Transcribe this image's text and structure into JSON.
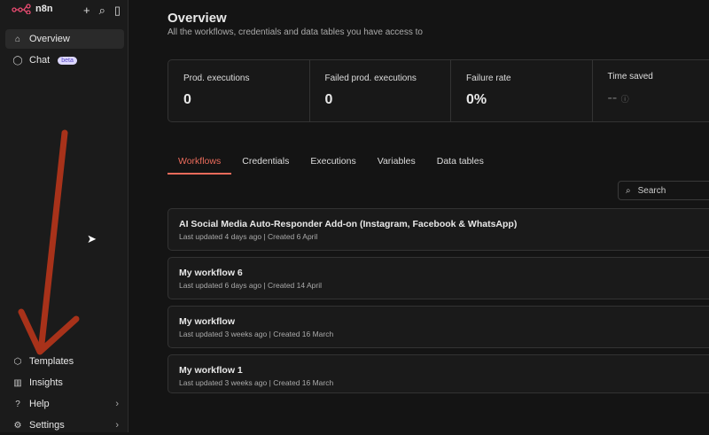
{
  "app": {
    "name": "n8n"
  },
  "sidebar": {
    "top": [
      {
        "label": "Overview",
        "icon": "home-icon"
      },
      {
        "label": "Chat",
        "icon": "chat-icon",
        "badge": "beta"
      }
    ],
    "bottom": [
      {
        "label": "Templates",
        "icon": "templates-icon"
      },
      {
        "label": "Insights",
        "icon": "chart-icon"
      },
      {
        "label": "Help",
        "icon": "help-icon"
      },
      {
        "label": "Settings",
        "icon": "gear-icon"
      }
    ]
  },
  "header": {
    "title": "Overview",
    "subtitle": "All the workflows, credentials and data tables you have access to"
  },
  "stats": [
    {
      "label": "Prod. executions",
      "value": "0"
    },
    {
      "label": "Failed prod. executions",
      "value": "0"
    },
    {
      "label": "Failure rate",
      "value": "0%"
    },
    {
      "label": "Time saved",
      "value": "--"
    }
  ],
  "tabs": [
    "Workflows",
    "Credentials",
    "Executions",
    "Variables",
    "Data tables"
  ],
  "search": {
    "placeholder": "Search"
  },
  "workflows": [
    {
      "name": "AI Social Media Auto-Responder Add-on (Instagram, Facebook & WhatsApp)",
      "updated": "Last updated 4 days ago",
      "created": "Created 6 April"
    },
    {
      "name": "My workflow 6",
      "updated": "Last updated 6 days ago",
      "created": "Created 14 April"
    },
    {
      "name": "My workflow",
      "updated": "Last updated 3 weeks ago",
      "created": "Created 16 March"
    },
    {
      "name": "My workflow 1",
      "updated": "Last updated 3 weeks ago",
      "created": "Created 16 March"
    }
  ],
  "colors": {
    "accent": "#ea6b5b",
    "annotation": "#a8321a"
  }
}
